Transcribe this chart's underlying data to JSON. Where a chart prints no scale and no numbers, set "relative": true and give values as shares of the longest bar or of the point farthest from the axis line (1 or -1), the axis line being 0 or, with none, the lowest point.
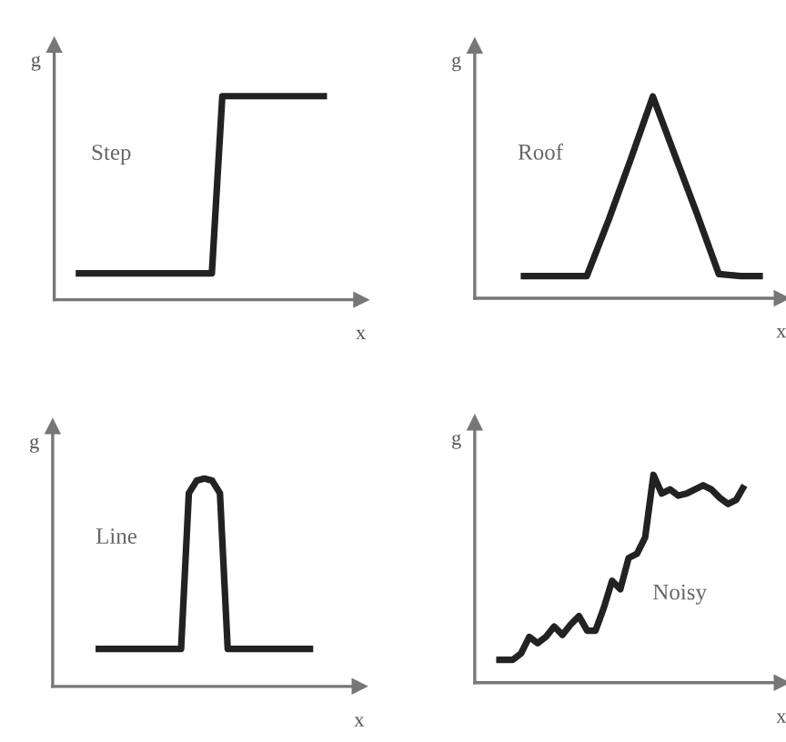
{
  "chart_data": [
    {
      "type": "line",
      "relative": true,
      "xlabel": "x",
      "ylabel": "g",
      "annotations": [
        "Step"
      ],
      "categories": [
        null,
        null,
        null,
        null,
        null,
        null,
        null,
        null,
        null,
        null,
        null,
        null,
        null,
        null,
        null,
        null,
        null,
        null,
        null,
        null,
        null,
        null,
        null,
        null,
        null
      ],
      "series": [
        {
          "color": "#222222",
          "values": [
            0.13,
            0.13,
            0.13,
            0.13,
            0.13,
            0.13,
            0.13,
            0.13,
            0.13,
            0.13,
            0.13,
            0.13,
            0.13,
            0.13,
            1,
            1,
            1,
            1,
            1,
            1,
            1,
            1,
            1,
            1,
            1
          ]
        }
      ]
    },
    {
      "type": "line",
      "relative": true,
      "xlabel": "x",
      "ylabel": "g",
      "annotations": [
        "Roof"
      ],
      "categories": [
        null,
        null,
        null,
        null,
        null,
        null,
        null,
        null,
        null,
        null,
        null,
        null
      ],
      "series": [
        {
          "color": "#222222",
          "values": [
            0.11,
            0.11,
            0.11,
            0.11,
            0.39,
            0.69,
            1,
            0.71,
            0.42,
            0.12,
            0.11,
            0.11
          ]
        }
      ]
    },
    {
      "type": "line",
      "relative": true,
      "xlabel": "x",
      "ylabel": "g",
      "annotations": [
        "Line"
      ],
      "categories": [
        null,
        null,
        null,
        null,
        null,
        null,
        null,
        null,
        null,
        null,
        null,
        null,
        null,
        null,
        null,
        null,
        null,
        null,
        null,
        null,
        null,
        null,
        null,
        null,
        null,
        null,
        null,
        null,
        null
      ],
      "series": [
        {
          "color": "#222222",
          "values": [
            0.18,
            0.18,
            0.18,
            0.18,
            0.18,
            0.18,
            0.18,
            0.18,
            0.18,
            0.18,
            0.18,
            0.18,
            0.93,
            0.99,
            1,
            0.99,
            0.93,
            0.18,
            0.18,
            0.18,
            0.18,
            0.18,
            0.18,
            0.18,
            0.18,
            0.18,
            0.18,
            0.18,
            0.18
          ]
        }
      ]
    },
    {
      "type": "line",
      "relative": true,
      "xlabel": "x",
      "ylabel": "g",
      "annotations": [
        "Noisy"
      ],
      "categories": [
        null,
        null,
        null,
        null,
        null,
        null,
        null,
        null,
        null,
        null,
        null,
        null,
        null,
        null,
        null,
        null,
        null,
        null,
        null,
        null,
        null,
        null,
        null,
        null,
        null,
        null,
        null,
        null,
        null,
        null,
        null
      ],
      "series": [
        {
          "color": "#222222",
          "values": [
            0.11,
            0.11,
            0.11,
            0.14,
            0.22,
            0.19,
            0.22,
            0.27,
            0.23,
            0.28,
            0.32,
            0.25,
            0.25,
            0.36,
            0.49,
            0.45,
            0.6,
            0.62,
            0.7,
            1,
            0.91,
            0.93,
            0.9,
            0.91,
            0.93,
            0.95,
            0.93,
            0.89,
            0.86,
            0.88,
            0.95
          ]
        }
      ]
    }
  ]
}
